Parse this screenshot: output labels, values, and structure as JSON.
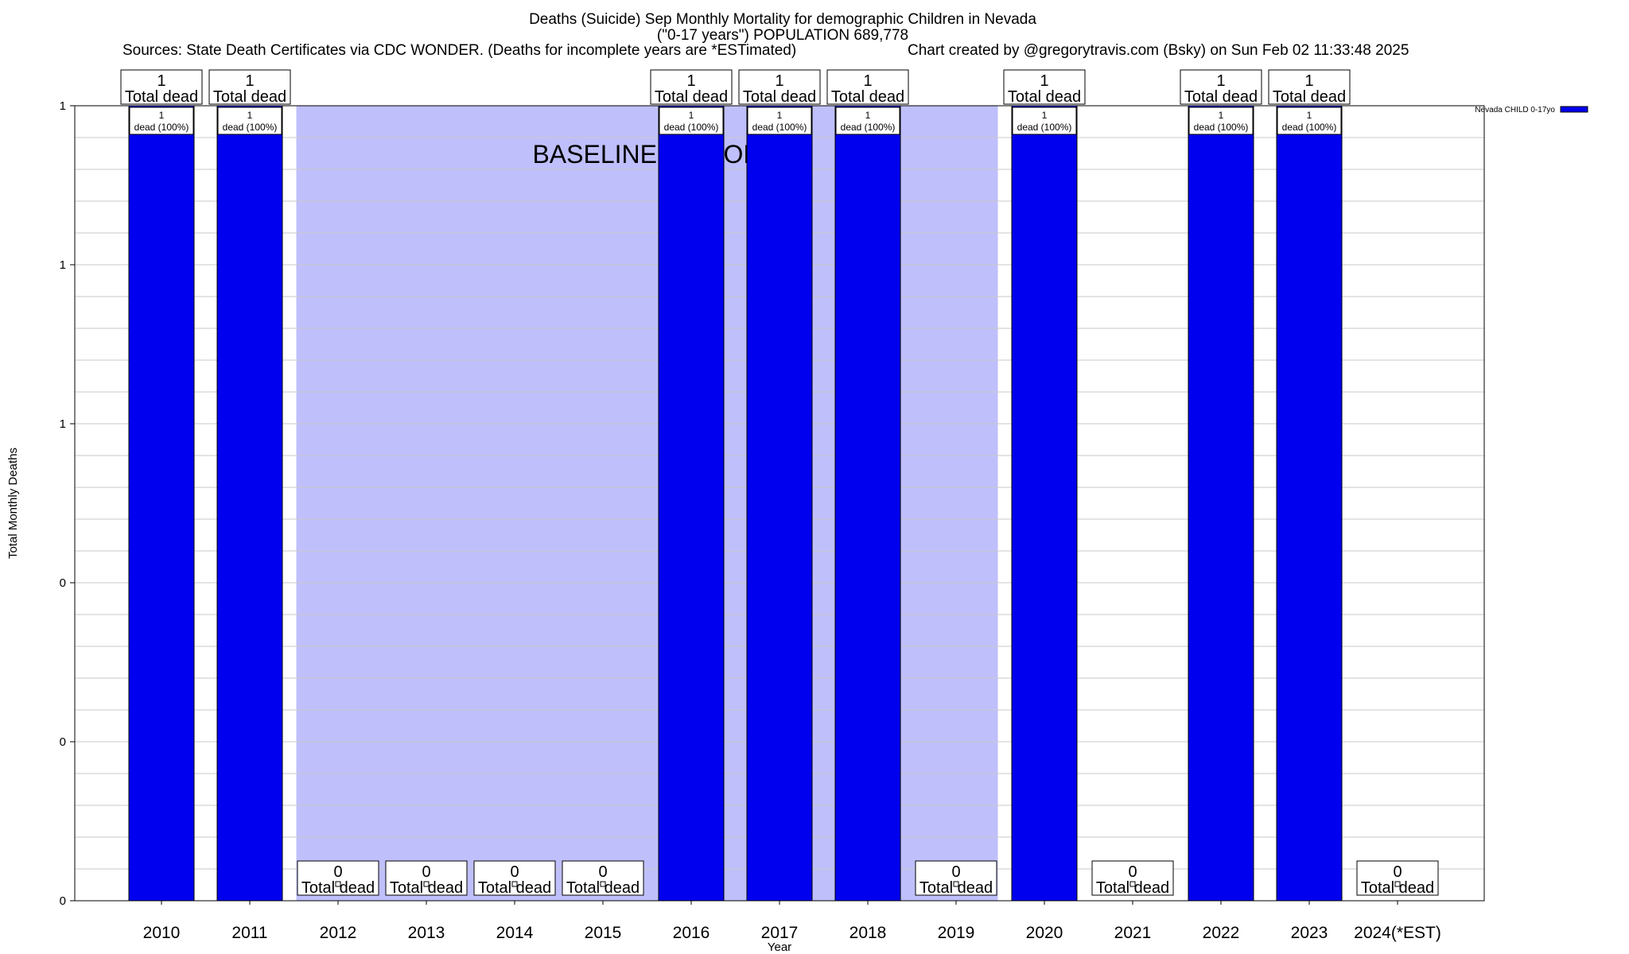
{
  "header": {
    "title_line1": "Deaths (Suicide) Sep Monthly Mortality for demographic Children in Nevada",
    "title_line2": "(\"0-17 years\") POPULATION 689,778",
    "sources": "Sources: State Death Certificates via CDC WONDER. (Deaths for incomplete years are *ESTimated)",
    "credit": "Chart created by @gregorytravis.com (Bsky) on Sun Feb 02 11:33:48 2025"
  },
  "chart_data": {
    "type": "bar",
    "xlabel": "Year",
    "ylabel": "Total Monthly Deaths",
    "ylim": [
      0,
      1
    ],
    "y_tick_labels": [
      "0",
      "0",
      "0",
      "1",
      "1",
      "1"
    ],
    "grid": true,
    "categories": [
      "2010",
      "2011",
      "2012",
      "2013",
      "2014",
      "2015",
      "2016",
      "2017",
      "2018",
      "2019",
      "2020",
      "2021",
      "2022",
      "2023",
      "2024(*EST)"
    ],
    "series": [
      {
        "name": "Nevada CHILD 0-17yo",
        "color": "#0000ee",
        "values": [
          1,
          1,
          0,
          0,
          0,
          0,
          1,
          1,
          1,
          0,
          1,
          0,
          1,
          1,
          0
        ]
      }
    ],
    "total_labels": [
      "1\nTotal dead",
      "1\nTotal dead",
      "0\nTotal dead",
      "0\nTotal dead",
      "0\nTotal dead",
      "0\nTotal dead",
      "1\nTotal dead",
      "1\nTotal dead",
      "1\nTotal dead",
      "0\nTotal dead",
      "1\nTotal dead",
      "0\nTotal dead",
      "1\nTotal dead",
      "1\nTotal dead",
      "0\nTotal dead"
    ],
    "inner_labels": [
      "1\ndead (100%)",
      "1\ndead (100%)",
      "",
      "",
      "",
      "",
      "1\ndead (100%)",
      "1\ndead (100%)",
      "1\ndead (100%)",
      "",
      "1\ndead (100%)",
      "",
      "1\ndead (100%)",
      "1\ndead (100%)",
      ""
    ],
    "baseline": {
      "label": "BASELINE PERIOD",
      "from": "2012",
      "to": "2019",
      "color": "#bfbffc"
    },
    "legend": {
      "position": "top-right",
      "entries": [
        "Nevada CHILD 0-17yo"
      ]
    }
  }
}
